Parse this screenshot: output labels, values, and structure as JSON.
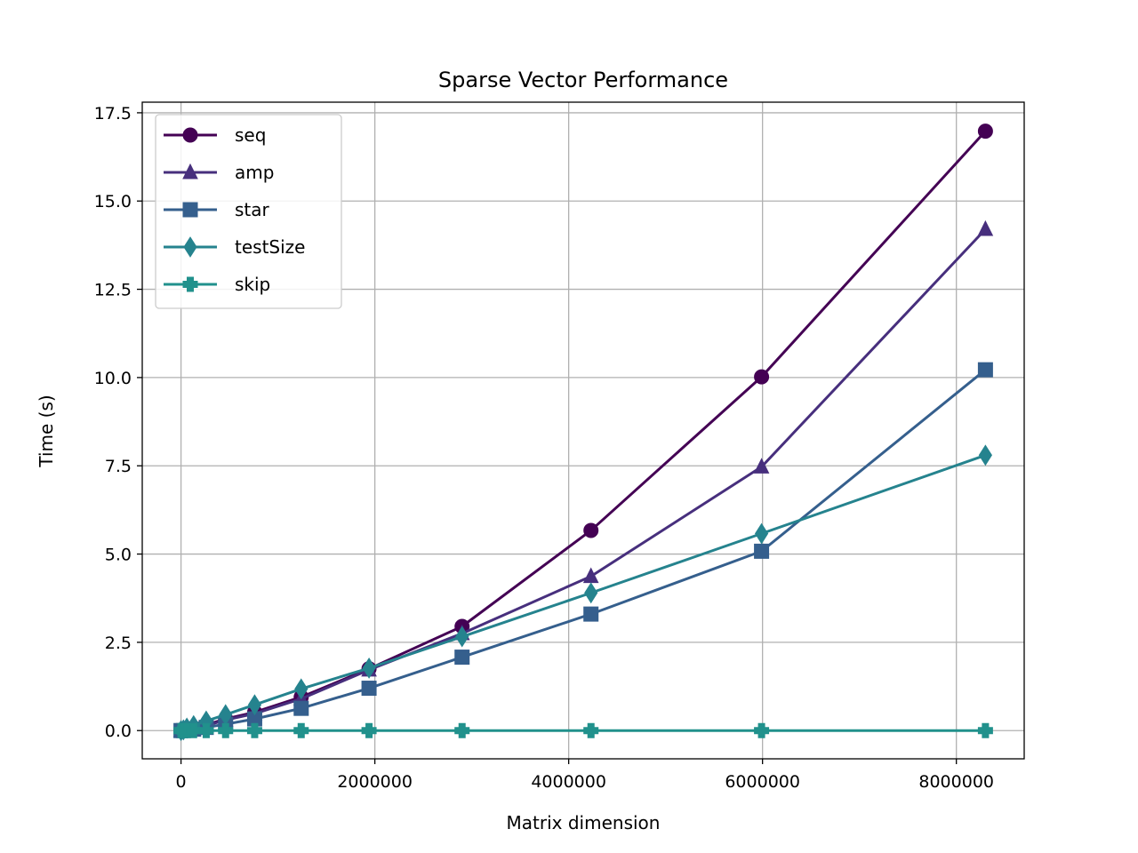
{
  "chart_data": {
    "type": "line",
    "title": "Sparse Vector Performance",
    "xlabel": "Matrix dimension",
    "ylabel": "Time (s)",
    "xlim": [
      -400000,
      8700000
    ],
    "ylim": [
      -0.8,
      17.8
    ],
    "xticks": [
      0,
      2000000,
      4000000,
      6000000,
      8000000
    ],
    "xtick_labels": [
      "0",
      "2000000",
      "4000000",
      "6000000",
      "8000000"
    ],
    "yticks": [
      0.0,
      2.5,
      5.0,
      7.5,
      10.0,
      12.5,
      15.0,
      17.5
    ],
    "ytick_labels": [
      "0.0",
      "2.5",
      "5.0",
      "7.5",
      "10.0",
      "12.5",
      "15.0",
      "17.5"
    ],
    "grid": true,
    "legend_position": "top-left",
    "x": [
      0,
      25000,
      60000,
      130000,
      260000,
      460000,
      760000,
      1240000,
      1940000,
      2900000,
      4230000,
      5990000,
      8300000
    ],
    "series": [
      {
        "name": "seq",
        "marker": "circle",
        "color": "#440154",
        "values": [
          0.0,
          0.01,
          0.03,
          0.07,
          0.16,
          0.33,
          0.52,
          0.95,
          1.75,
          2.95,
          5.67,
          10.02,
          16.98
        ]
      },
      {
        "name": "amp",
        "marker": "triangle",
        "color": "#472f7d",
        "values": [
          0.0,
          0.01,
          0.03,
          0.06,
          0.14,
          0.3,
          0.48,
          0.9,
          1.72,
          2.75,
          4.37,
          7.47,
          14.2
        ]
      },
      {
        "name": "star",
        "marker": "square",
        "color": "#355f8d",
        "values": [
          0.0,
          0.0,
          0.02,
          0.04,
          0.09,
          0.18,
          0.33,
          0.63,
          1.2,
          2.08,
          3.3,
          5.08,
          10.22
        ]
      },
      {
        "name": "testSize",
        "marker": "diamond",
        "color": "#25838e",
        "values": [
          0.0,
          0.02,
          0.07,
          0.14,
          0.27,
          0.45,
          0.73,
          1.18,
          1.77,
          2.66,
          3.9,
          5.58,
          7.8
        ]
      },
      {
        "name": "skip",
        "marker": "plus",
        "color": "#21918c",
        "values": [
          0.0,
          0.0,
          0.0,
          0.0,
          0.0,
          0.0,
          0.0,
          0.0,
          0.0,
          0.0,
          0.0,
          0.0,
          0.0
        ]
      }
    ]
  }
}
